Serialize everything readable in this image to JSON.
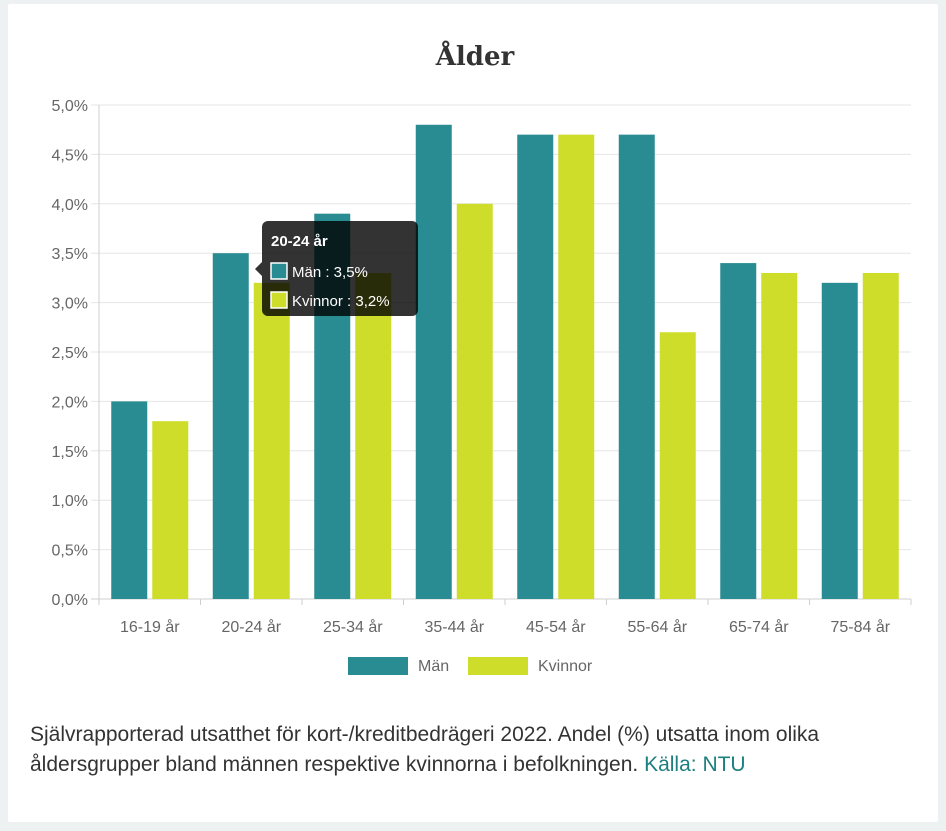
{
  "chart_data": {
    "type": "bar",
    "title": "Ålder",
    "categories": [
      "16-19 år",
      "20-24 år",
      "25-34 år",
      "35-44 år",
      "45-54 år",
      "55-64 år",
      "65-74 år",
      "75-84 år"
    ],
    "series": [
      {
        "name": "Män",
        "color": "#2a8c93",
        "values": [
          2.0,
          3.5,
          3.9,
          4.8,
          4.7,
          4.7,
          3.4,
          3.2
        ]
      },
      {
        "name": "Kvinnor",
        "color": "#cedd2a",
        "values": [
          1.8,
          3.2,
          3.3,
          4.0,
          4.7,
          2.7,
          3.3,
          3.3
        ]
      }
    ],
    "y_ticks": [
      "0,0%",
      "0,5%",
      "1,0%",
      "1,5%",
      "2,0%",
      "2,5%",
      "3,0%",
      "3,5%",
      "4,0%",
      "4,5%",
      "5,0%"
    ],
    "ylim": [
      0,
      5
    ],
    "grid": true,
    "legend_position": "bottom",
    "tooltip": {
      "title": "20-24 år",
      "category_index": 1,
      "lines": [
        "Män : 3,5%",
        "Kvinnor : 3,2%"
      ]
    }
  },
  "caption": {
    "text": "Självrapporterad utsatthet för kort-/kreditbedrägeri 2022. Andel (%) utsatta inom olika åldersgrupper bland männen respektive kvinnorna i befolkningen.",
    "link_text": "Källa: NTU"
  }
}
